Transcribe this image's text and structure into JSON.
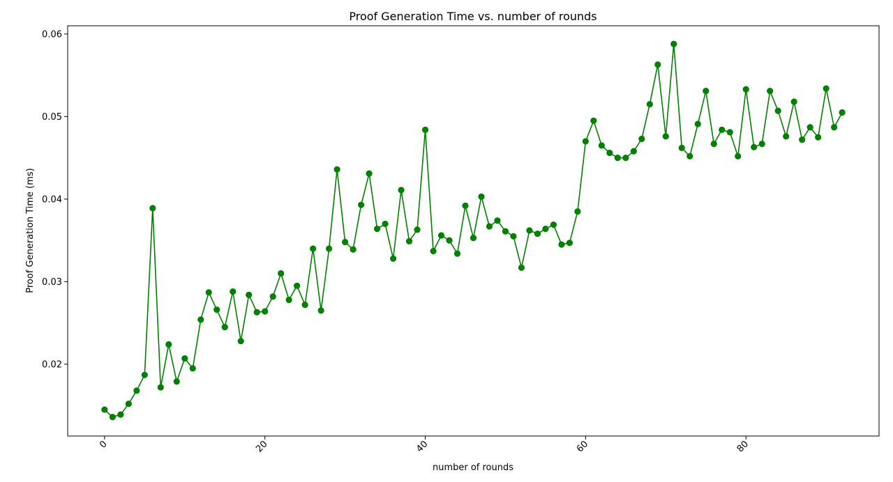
{
  "chart_data": {
    "type": "line",
    "title": "Proof Generation Time vs. number of rounds",
    "xlabel": "number of rounds",
    "ylabel": "Proof Generation Time (ms)",
    "xlim": [
      -4.6,
      96.6
    ],
    "ylim": [
      0.0113,
      0.061
    ],
    "x_ticks": [
      0,
      20,
      40,
      60,
      80
    ],
    "y_ticks": [
      0.02,
      0.03,
      0.04,
      0.05,
      0.06
    ],
    "y_tick_labels": [
      "0.02",
      "0.03",
      "0.04",
      "0.05",
      "0.06"
    ],
    "x_tick_rotation": 45,
    "grid": false,
    "line_color": "#008000",
    "marker": "circle",
    "series": [
      {
        "x": [
          0,
          1,
          2,
          3,
          4,
          5,
          6,
          7,
          8,
          9,
          10,
          11,
          12,
          13,
          14,
          15,
          16,
          17,
          18,
          19,
          20,
          21,
          22,
          23,
          24,
          25,
          26,
          27,
          28,
          29,
          30,
          31,
          32,
          33,
          34,
          35,
          36,
          37,
          38,
          39,
          40,
          41,
          42,
          43,
          44,
          45,
          46,
          47,
          48,
          49,
          50,
          51,
          52,
          53,
          54,
          55,
          56,
          57,
          58,
          59,
          60,
          61,
          62,
          63,
          64,
          65,
          66,
          67,
          68,
          69,
          70,
          71,
          72,
          73,
          74,
          75,
          76,
          77,
          78,
          79,
          80,
          81,
          82,
          83,
          84,
          85,
          86,
          87,
          88,
          89,
          90,
          91,
          92
        ],
        "values": [
          0.0145,
          0.0136,
          0.0139,
          0.0152,
          0.0168,
          0.0187,
          0.0389,
          0.0172,
          0.0224,
          0.0179,
          0.0207,
          0.0195,
          0.0254,
          0.0287,
          0.0266,
          0.0245,
          0.0288,
          0.0228,
          0.0284,
          0.0263,
          0.0264,
          0.0282,
          0.031,
          0.0278,
          0.0295,
          0.0272,
          0.034,
          0.0265,
          0.034,
          0.0436,
          0.0348,
          0.0339,
          0.0393,
          0.0431,
          0.0364,
          0.037,
          0.0328,
          0.0411,
          0.0349,
          0.0363,
          0.0484,
          0.0337,
          0.0356,
          0.035,
          0.0334,
          0.0392,
          0.0353,
          0.0403,
          0.0367,
          0.0374,
          0.0361,
          0.0355,
          0.0317,
          0.0362,
          0.0358,
          0.0364,
          0.0369,
          0.0345,
          0.0347,
          0.0385,
          0.047,
          0.0495,
          0.0465,
          0.0456,
          0.045,
          0.045,
          0.0458,
          0.0473,
          0.0515,
          0.0563,
          0.0476,
          0.0588,
          0.0462,
          0.0452,
          0.0491,
          0.0531,
          0.0467,
          0.0484,
          0.0481,
          0.0452,
          0.0533,
          0.0463,
          0.0467,
          0.0531,
          0.0507,
          0.0476,
          0.0518,
          0.0472,
          0.0487,
          0.0475,
          0.0534,
          0.0487,
          0.0505
        ]
      }
    ]
  }
}
